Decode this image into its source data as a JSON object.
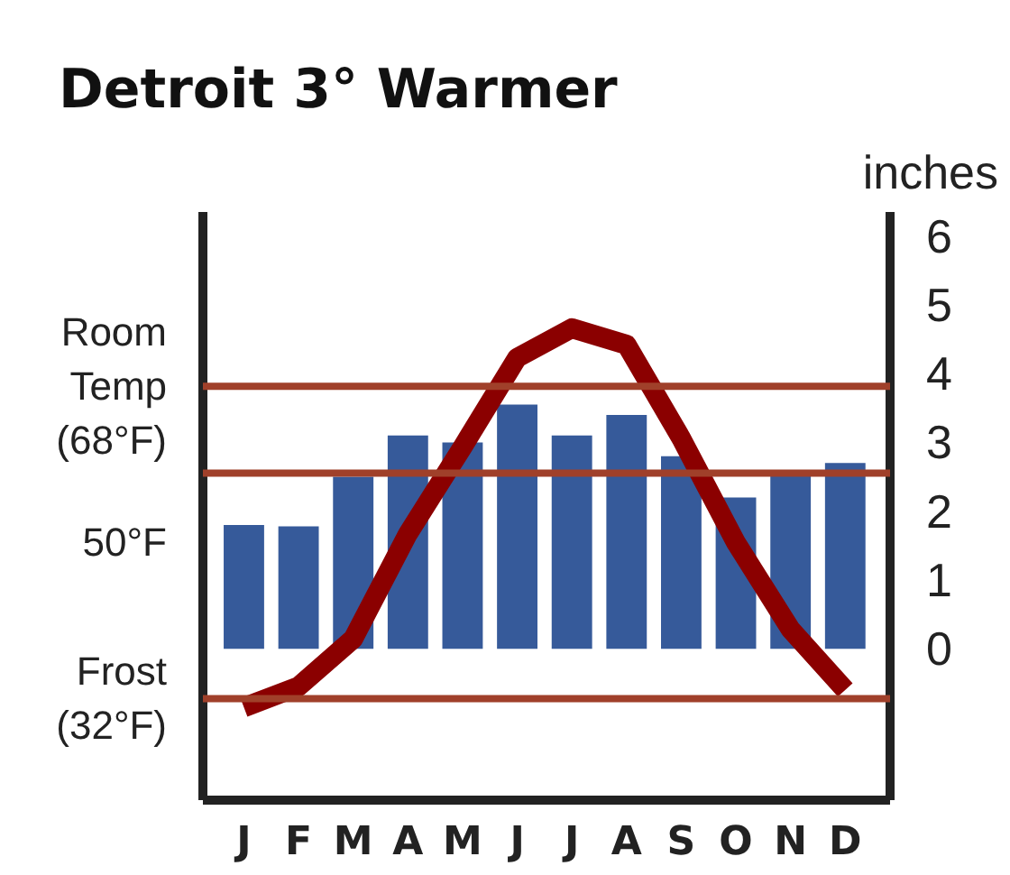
{
  "chart_data": {
    "type": "bar",
    "title": "Detroit 3° Warmer",
    "y2label": "inches",
    "categories": [
      "J",
      "F",
      "M",
      "A",
      "M",
      "J",
      "J",
      "A",
      "S",
      "O",
      "N",
      "D"
    ],
    "series": [
      {
        "axis": "y2",
        "color": "#365a9a",
        "values": [
          1.8,
          1.78,
          2.5,
          3.1,
          3.0,
          3.55,
          3.1,
          3.4,
          2.8,
          2.2,
          2.55,
          2.7
        ]
      },
      {
        "type": "line",
        "axis": "y",
        "color": "#8b0000",
        "values": [
          31,
          33.4,
          38.9,
          51,
          61,
          71.3,
          74.7,
          72.8,
          62,
          50,
          40,
          33
        ]
      }
    ],
    "ylim": [
      20.3,
      88.1
    ],
    "yticks": [
      {
        "value": 32,
        "label": "Frost\n(32°F)"
      },
      {
        "value": 50,
        "label": "50°F"
      },
      {
        "value": 68,
        "label": "Room\nTemp\n(68°F)"
      }
    ],
    "y2lim": [
      -2.2,
      6.35
    ],
    "y2ticks": [
      0,
      1,
      2,
      3,
      4,
      5,
      6
    ],
    "ref_lines": [
      {
        "axis": "y",
        "value": 68,
        "color": "#a0402a"
      },
      {
        "axis": "y",
        "value": 58,
        "color": "#a0402a"
      },
      {
        "axis": "y",
        "value": 32,
        "color": "#a0402a"
      }
    ],
    "grid": false,
    "line_style": "solid",
    "marker": "none"
  }
}
